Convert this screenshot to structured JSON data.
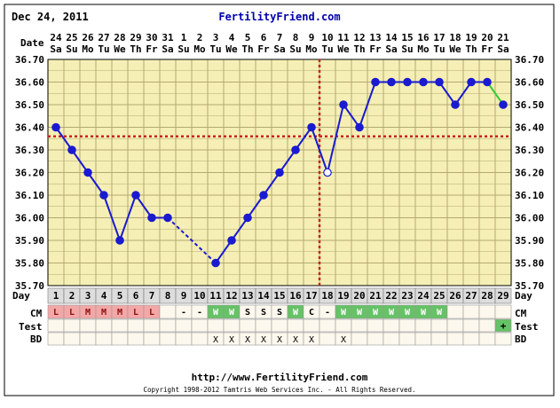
{
  "header": {
    "chart_date": "Dec 24, 2011",
    "site_title": "FertilityFriend.com"
  },
  "footer": {
    "url": "http://www.FertilityFriend.com",
    "copyright": "Copyright 1998-2012 Tamtris Web Services Inc. - All Rights Reserved."
  },
  "row_labels": {
    "date": "Date",
    "day": "Day",
    "cm": "CM",
    "test": "Test",
    "bd": "BD"
  },
  "colors": {
    "plot_background": "#f5efb5",
    "grid": "#b3aa70",
    "line": "#1a1ad0",
    "line_after_crossover": "#33cc33",
    "coverline": "#cc2222",
    "ovulation_line": "#cc2222",
    "cm_lowfertility": "#f4a7a7",
    "cm_watery": "#66c266",
    "test_positive": "#66c266",
    "date_text": "#000000",
    "site_title": "#0000aa"
  },
  "chart_data": {
    "type": "line",
    "title": "FertilityFriend.com",
    "ylabel": "",
    "ylim": [
      35.7,
      36.7
    ],
    "y_ticks": [
      "36.70",
      "36.60",
      "36.50",
      "36.40",
      "36.30",
      "36.20",
      "36.10",
      "36.00",
      "35.90",
      "35.80",
      "35.70"
    ],
    "dates": [
      "24",
      "25",
      "26",
      "27",
      "28",
      "29",
      "30",
      "31",
      "1",
      "2",
      "3",
      "4",
      "5",
      "6",
      "7",
      "8",
      "9",
      "10",
      "11",
      "12",
      "13",
      "14",
      "15",
      "16",
      "17",
      "18",
      "19",
      "20",
      "21"
    ],
    "weekdays": [
      "Sa",
      "Su",
      "Mo",
      "Tu",
      "We",
      "Th",
      "Fr",
      "Sa",
      "Su",
      "Mo",
      "Tu",
      "We",
      "Th",
      "Fr",
      "Sa",
      "Su",
      "Mo",
      "Tu",
      "We",
      "Th",
      "Fr",
      "Sa",
      "Su",
      "Mo",
      "Tu",
      "We",
      "Th",
      "Fr",
      "Sa"
    ],
    "cycle_days": [
      "1",
      "2",
      "3",
      "4",
      "5",
      "6",
      "7",
      "8",
      "9",
      "10",
      "11",
      "12",
      "13",
      "14",
      "15",
      "16",
      "17",
      "18",
      "19",
      "20",
      "21",
      "22",
      "23",
      "24",
      "25",
      "26",
      "27",
      "28",
      "29"
    ],
    "temperatures": [
      36.4,
      36.3,
      36.2,
      36.1,
      35.9,
      36.1,
      36.0,
      36.0,
      null,
      null,
      35.8,
      35.9,
      36.0,
      36.1,
      36.2,
      36.3,
      36.4,
      36.2,
      36.5,
      36.4,
      36.6,
      36.6,
      36.6,
      36.6,
      36.6,
      36.5,
      36.6,
      36.6,
      36.5
    ],
    "open_point_days": [
      17
    ],
    "coverline": 36.36,
    "ovulation_day": 18,
    "cm": [
      "L",
      "L",
      "M",
      "M",
      "M",
      "L",
      "L",
      "",
      "-",
      "-",
      "W",
      "W",
      "S",
      "S",
      "S",
      "W",
      "C",
      "-",
      "W",
      "W",
      "W",
      "W",
      "W",
      "W",
      "W",
      "",
      "",
      "",
      ""
    ],
    "test": [
      "",
      "",
      "",
      "",
      "",
      "",
      "",
      "",
      "",
      "",
      "",
      "",
      "",
      "",
      "",
      "",
      "",
      "",
      "",
      "",
      "",
      "",
      "",
      "",
      "",
      "",
      "",
      "",
      "+"
    ],
    "bd": [
      "",
      "",
      "",
      "",
      "",
      "",
      "",
      "",
      "",
      "",
      "X",
      "X",
      "X",
      "X",
      "X",
      "X",
      "X",
      "",
      "X",
      "",
      "",
      "",
      "",
      "",
      "",
      "",
      "",
      "",
      ""
    ],
    "grid": true
  }
}
